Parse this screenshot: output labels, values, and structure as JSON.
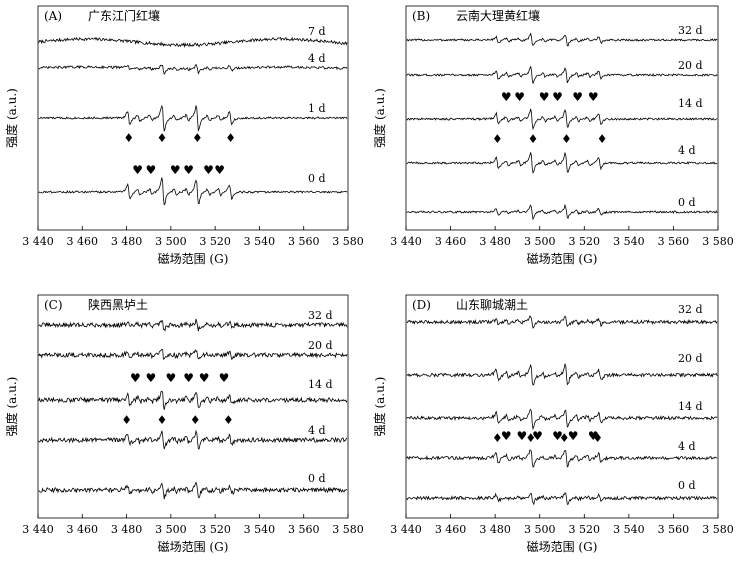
{
  "figure": {
    "x_axis_label": "磁场范围 (G)",
    "y_axis_label": "强度 (a.u.)"
  },
  "symbols": {
    "heart": "♥",
    "diamond": "♦"
  },
  "chart_data": [
    {
      "type": "line",
      "panel_label": "(A)",
      "title": "广东江门红壤",
      "xlabel": "磁场范围 (G)",
      "ylabel": "强度 (a.u.)",
      "xlim": [
        3440,
        3580
      ],
      "x_ticks": [
        "3 440",
        "3 460",
        "3 480",
        "3 500",
        "3 520",
        "3 540",
        "3 560",
        "3 580"
      ],
      "grid": false,
      "series": [
        {
          "name": "7 d",
          "intensity": 0.05,
          "noise": 1.5,
          "wave": 3
        },
        {
          "name": "4 d",
          "intensity": 0.35,
          "noise": 1.2,
          "wave": 1
        },
        {
          "name": "1 d",
          "intensity": 1.0,
          "noise": 1.0,
          "wave": 0
        },
        {
          "name": "0 d",
          "intensity": 1.05,
          "noise": 1.0,
          "wave": 0
        }
      ],
      "annotations": [
        {
          "symbol": "diamond",
          "series": "1 d",
          "x": [
            3481,
            3496,
            3512,
            3527
          ]
        },
        {
          "symbol": "heart",
          "series": "0 d",
          "x": [
            3485,
            3491,
            3502,
            3508,
            3517,
            3522
          ]
        }
      ]
    },
    {
      "type": "line",
      "panel_label": "(B)",
      "title": "云南大理黄红壤",
      "xlabel": "磁场范围 (G)",
      "ylabel": "强度 (a.u.)",
      "xlim": [
        3440,
        3580
      ],
      "x_ticks": [
        "3 440",
        "3 460",
        "3 480",
        "3 500",
        "3 520",
        "3 540",
        "3 560",
        "3 580"
      ],
      "grid": false,
      "series": [
        {
          "name": "32 d",
          "intensity": 0.45,
          "noise": 1.0,
          "wave": 0
        },
        {
          "name": "20 d",
          "intensity": 0.6,
          "noise": 1.0,
          "wave": 0
        },
        {
          "name": "14 d",
          "intensity": 0.75,
          "noise": 1.0,
          "wave": 0
        },
        {
          "name": "4 d",
          "intensity": 0.8,
          "noise": 1.0,
          "wave": 0
        },
        {
          "name": "0 d",
          "intensity": 0.5,
          "noise": 1.0,
          "wave": 0
        }
      ],
      "annotations": [
        {
          "symbol": "heart",
          "series": "14 d",
          "x": [
            3485,
            3491,
            3502,
            3508,
            3517,
            3524
          ]
        },
        {
          "symbol": "diamond",
          "series": "14 d",
          "x": [
            3481,
            3497,
            3512,
            3528
          ]
        }
      ]
    },
    {
      "type": "line",
      "panel_label": "(C)",
      "title": "陕西黑垆土",
      "xlabel": "磁场范围 (G)",
      "ylabel": "强度 (a.u.)",
      "xlim": [
        3440,
        3580
      ],
      "x_ticks": [
        "3 440",
        "3 460",
        "3 480",
        "3 500",
        "3 520",
        "3 540",
        "3 560",
        "3 580"
      ],
      "grid": false,
      "series": [
        {
          "name": "32 d",
          "intensity": 0.35,
          "noise": 2.2,
          "wave": 0
        },
        {
          "name": "20 d",
          "intensity": 0.45,
          "noise": 2.2,
          "wave": 0
        },
        {
          "name": "14 d",
          "intensity": 0.7,
          "noise": 2.2,
          "wave": 0
        },
        {
          "name": "4 d",
          "intensity": 0.75,
          "noise": 2.2,
          "wave": 0
        },
        {
          "name": "0 d",
          "intensity": 0.55,
          "noise": 2.2,
          "wave": 0
        }
      ],
      "annotations": [
        {
          "symbol": "heart",
          "series": "14 d",
          "x": [
            3484,
            3491,
            3500,
            3508,
            3515,
            3524
          ]
        },
        {
          "symbol": "diamond",
          "series": "14 d",
          "x": [
            3480,
            3496,
            3511,
            3526
          ]
        }
      ]
    },
    {
      "type": "line",
      "panel_label": "(D)",
      "title": "山东聊城潮土",
      "xlabel": "磁场范围 (G)",
      "ylabel": "强度 (a.u.)",
      "xlim": [
        3440,
        3580
      ],
      "x_ticks": [
        "3 440",
        "3 460",
        "3 480",
        "3 500",
        "3 520",
        "3 540",
        "3 560",
        "3 580"
      ],
      "grid": false,
      "series": [
        {
          "name": "32 d",
          "intensity": 0.45,
          "noise": 1.6,
          "wave": 0
        },
        {
          "name": "20 d",
          "intensity": 0.85,
          "noise": 1.6,
          "wave": 0
        },
        {
          "name": "14 d",
          "intensity": 0.75,
          "noise": 1.6,
          "wave": 0
        },
        {
          "name": "4 d",
          "intensity": 0.7,
          "noise": 1.6,
          "wave": 0
        },
        {
          "name": "0 d",
          "intensity": 0.45,
          "noise": 1.6,
          "wave": 0
        }
      ],
      "annotations": [
        {
          "symbol": "diamond",
          "series": "14 d",
          "x": [
            3481,
            3496,
            3511,
            3526
          ]
        },
        {
          "symbol": "heart",
          "series": "4 d",
          "x": [
            3485,
            3492,
            3499,
            3508,
            3515,
            3524
          ]
        }
      ]
    }
  ]
}
